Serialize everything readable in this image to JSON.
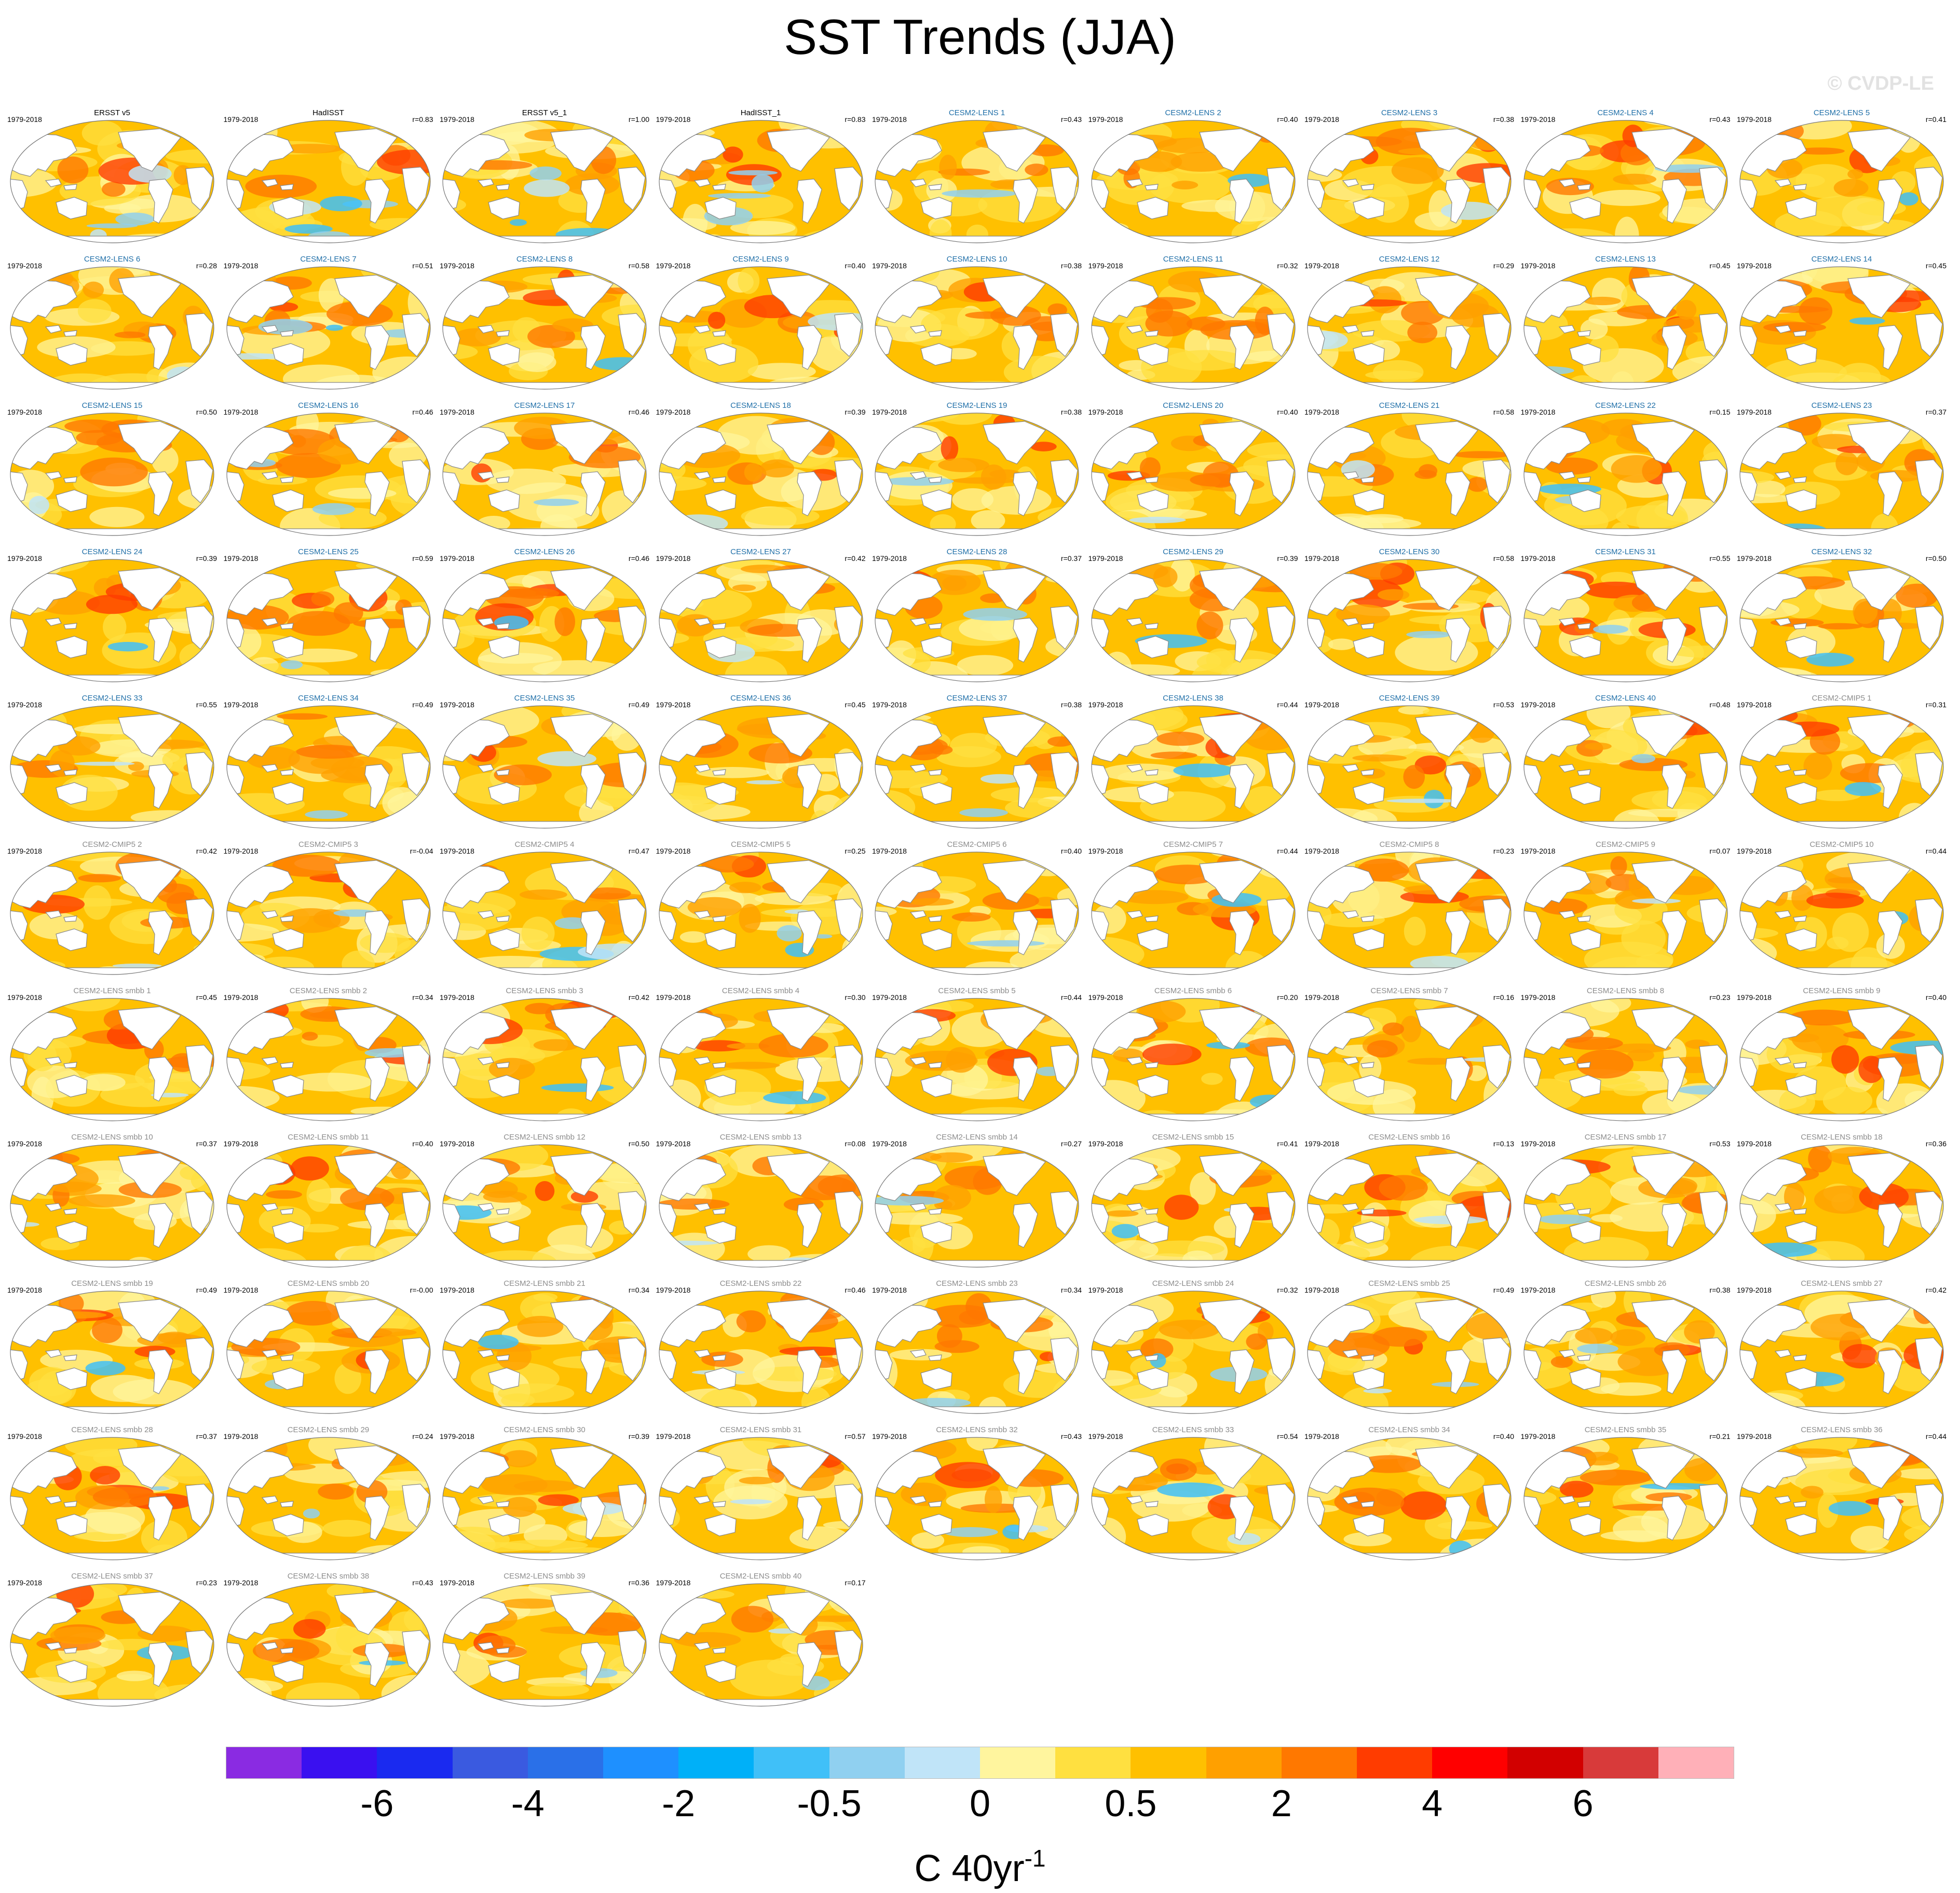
{
  "title": "SST Trends (JJA)",
  "watermark": "© CVDP-LE",
  "period": "1979-2018",
  "panels": [
    {
      "name": "ERSST v5",
      "r": "",
      "group": "obs",
      "warm": 0.55,
      "cool": 0.35
    },
    {
      "name": "HadISST",
      "r": "r=0.83",
      "group": "obs",
      "warm": 0.5,
      "cool": 0.4
    },
    {
      "name": "ERSST v5_1",
      "r": "r=1.00",
      "group": "obs",
      "warm": 0.55,
      "cool": 0.35
    },
    {
      "name": "HadISST_1",
      "r": "r=0.83",
      "group": "obs",
      "warm": 0.5,
      "cool": 0.45
    },
    {
      "name": "CESM2-LENS 1",
      "r": "r=0.43",
      "group": "lens",
      "warm": 0.7,
      "cool": 0.1
    },
    {
      "name": "CESM2-LENS 2",
      "r": "r=0.40",
      "group": "lens",
      "warm": 0.8,
      "cool": 0.1
    },
    {
      "name": "CESM2-LENS 3",
      "r": "r=0.38",
      "group": "lens",
      "warm": 0.8,
      "cool": 0.05
    },
    {
      "name": "CESM2-LENS 4",
      "r": "r=0.43",
      "group": "lens",
      "warm": 0.75,
      "cool": 0.1
    },
    {
      "name": "CESM2-LENS 5",
      "r": "r=0.41",
      "group": "lens",
      "warm": 0.75,
      "cool": 0.05
    },
    {
      "name": "CESM2-LENS 6",
      "r": "r=0.28",
      "group": "lens",
      "warm": 0.8,
      "cool": 0.05
    },
    {
      "name": "CESM2-LENS 7",
      "r": "r=0.51",
      "group": "lens",
      "warm": 0.7,
      "cool": 0.3
    },
    {
      "name": "CESM2-LENS 8",
      "r": "r=0.58",
      "group": "lens",
      "warm": 0.8,
      "cool": 0.05
    },
    {
      "name": "CESM2-LENS 9",
      "r": "r=0.40",
      "group": "lens",
      "warm": 0.75,
      "cool": 0.1
    },
    {
      "name": "CESM2-LENS 10",
      "r": "r=0.38",
      "group": "lens",
      "warm": 0.85,
      "cool": 0.05
    },
    {
      "name": "CESM2-LENS 11",
      "r": "r=0.32",
      "group": "lens",
      "warm": 0.75,
      "cool": 0.05
    },
    {
      "name": "CESM2-LENS 12",
      "r": "r=0.29",
      "group": "lens",
      "warm": 0.75,
      "cool": 0.05
    },
    {
      "name": "CESM2-LENS 13",
      "r": "r=0.45",
      "group": "lens",
      "warm": 0.8,
      "cool": 0.05
    },
    {
      "name": "CESM2-LENS 14",
      "r": "r=0.45",
      "group": "lens",
      "warm": 0.85,
      "cool": 0.05
    },
    {
      "name": "CESM2-LENS 15",
      "r": "r=0.50",
      "group": "lens",
      "warm": 0.75,
      "cool": 0.1
    },
    {
      "name": "CESM2-LENS 16",
      "r": "r=0.46",
      "group": "lens",
      "warm": 0.75,
      "cool": 0.15
    },
    {
      "name": "CESM2-LENS 17",
      "r": "r=0.46",
      "group": "lens",
      "warm": 0.7,
      "cool": 0.1
    },
    {
      "name": "CESM2-LENS 18",
      "r": "r=0.39",
      "group": "lens",
      "warm": 0.8,
      "cool": 0.05
    },
    {
      "name": "CESM2-LENS 19",
      "r": "r=0.38",
      "group": "lens",
      "warm": 0.75,
      "cool": 0.1
    },
    {
      "name": "CESM2-LENS 20",
      "r": "r=0.40",
      "group": "lens",
      "warm": 0.85,
      "cool": 0.05
    },
    {
      "name": "CESM2-LENS 21",
      "r": "r=0.58",
      "group": "lens",
      "warm": 0.8,
      "cool": 0.05
    },
    {
      "name": "CESM2-LENS 22",
      "r": "r=0.15",
      "group": "lens",
      "warm": 0.75,
      "cool": 0.15
    },
    {
      "name": "CESM2-LENS 23",
      "r": "r=0.37",
      "group": "lens",
      "warm": 0.8,
      "cool": 0.1
    },
    {
      "name": "CESM2-LENS 24",
      "r": "r=0.39",
      "group": "lens",
      "warm": 0.7,
      "cool": 0.1
    },
    {
      "name": "CESM2-LENS 25",
      "r": "r=0.59",
      "group": "lens",
      "warm": 0.75,
      "cool": 0.1
    },
    {
      "name": "CESM2-LENS 26",
      "r": "r=0.46",
      "group": "lens",
      "warm": 0.75,
      "cool": 0.05
    },
    {
      "name": "CESM2-LENS 27",
      "r": "r=0.42",
      "group": "lens",
      "warm": 0.75,
      "cool": 0.1
    },
    {
      "name": "CESM2-LENS 28",
      "r": "r=0.37",
      "group": "lens",
      "warm": 0.7,
      "cool": 0.1
    },
    {
      "name": "CESM2-LENS 29",
      "r": "r=0.39",
      "group": "lens",
      "warm": 0.8,
      "cool": 0.05
    },
    {
      "name": "CESM2-LENS 30",
      "r": "r=0.58",
      "group": "lens",
      "warm": 0.7,
      "cool": 0.05
    },
    {
      "name": "CESM2-LENS 31",
      "r": "r=0.55",
      "group": "lens",
      "warm": 0.8,
      "cool": 0.1
    },
    {
      "name": "CESM2-LENS 32",
      "r": "r=0.50",
      "group": "lens",
      "warm": 0.75,
      "cool": 0.05
    },
    {
      "name": "CESM2-LENS 33",
      "r": "r=0.55",
      "group": "lens",
      "warm": 0.75,
      "cool": 0.1
    },
    {
      "name": "CESM2-LENS 34",
      "r": "r=0.49",
      "group": "lens",
      "warm": 0.85,
      "cool": 0.05
    },
    {
      "name": "CESM2-LENS 35",
      "r": "r=0.49",
      "group": "lens",
      "warm": 0.7,
      "cool": 0.05
    },
    {
      "name": "CESM2-LENS 36",
      "r": "r=0.45",
      "group": "lens",
      "warm": 0.8,
      "cool": 0.1
    },
    {
      "name": "CESM2-LENS 37",
      "r": "r=0.38",
      "group": "lens",
      "warm": 0.65,
      "cool": 0.15
    },
    {
      "name": "CESM2-LENS 38",
      "r": "r=0.44",
      "group": "lens",
      "warm": 0.8,
      "cool": 0.1
    },
    {
      "name": "CESM2-LENS 39",
      "r": "r=0.53",
      "group": "lens",
      "warm": 0.7,
      "cool": 0.15
    },
    {
      "name": "CESM2-LENS 40",
      "r": "r=0.48",
      "group": "lens",
      "warm": 0.8,
      "cool": 0.05
    },
    {
      "name": "CESM2-CMIP5 1",
      "r": "r=0.31",
      "group": "other",
      "warm": 0.75,
      "cool": 0.05
    },
    {
      "name": "CESM2-CMIP5 2",
      "r": "r=0.42",
      "group": "other",
      "warm": 0.75,
      "cool": 0.05
    },
    {
      "name": "CESM2-CMIP5 3",
      "r": "r=-0.04",
      "group": "other",
      "warm": 0.7,
      "cool": 0.05
    },
    {
      "name": "CESM2-CMIP5 4",
      "r": "r=0.47",
      "group": "other",
      "warm": 0.65,
      "cool": 0.25
    },
    {
      "name": "CESM2-CMIP5 5",
      "r": "r=0.25",
      "group": "other",
      "warm": 0.6,
      "cool": 0.3
    },
    {
      "name": "CESM2-CMIP5 6",
      "r": "r=0.40",
      "group": "other",
      "warm": 0.7,
      "cool": 0.05
    },
    {
      "name": "CESM2-CMIP5 7",
      "r": "r=0.44",
      "group": "other",
      "warm": 0.75,
      "cool": 0.05
    },
    {
      "name": "CESM2-CMIP5 8",
      "r": "r=0.23",
      "group": "other",
      "warm": 0.7,
      "cool": 0.1
    },
    {
      "name": "CESM2-CMIP5 9",
      "r": "r=0.07",
      "group": "other",
      "warm": 0.7,
      "cool": 0.1
    },
    {
      "name": "CESM2-CMIP5 10",
      "r": "r=0.44",
      "group": "other",
      "warm": 0.75,
      "cool": 0.05
    },
    {
      "name": "CESM2-LENS smbb 1",
      "r": "r=0.45",
      "group": "other",
      "warm": 0.75,
      "cool": 0.05
    },
    {
      "name": "CESM2-LENS smbb 2",
      "r": "r=0.34",
      "group": "other",
      "warm": 0.75,
      "cool": 0.05
    },
    {
      "name": "CESM2-LENS smbb 3",
      "r": "r=0.42",
      "group": "other",
      "warm": 0.7,
      "cool": 0.05
    },
    {
      "name": "CESM2-LENS smbb 4",
      "r": "r=0.30",
      "group": "other",
      "warm": 0.7,
      "cool": 0.1
    },
    {
      "name": "CESM2-LENS smbb 5",
      "r": "r=0.44",
      "group": "other",
      "warm": 0.8,
      "cool": 0.05
    },
    {
      "name": "CESM2-LENS smbb 6",
      "r": "r=0.20",
      "group": "other",
      "warm": 0.7,
      "cool": 0.15
    },
    {
      "name": "CESM2-LENS smbb 7",
      "r": "r=0.16",
      "group": "other",
      "warm": 0.75,
      "cool": 0.1
    },
    {
      "name": "CESM2-LENS smbb 8",
      "r": "r=0.23",
      "group": "other",
      "warm": 0.75,
      "cool": 0.05
    },
    {
      "name": "CESM2-LENS smbb 9",
      "r": "r=0.40",
      "group": "other",
      "warm": 0.75,
      "cool": 0.05
    },
    {
      "name": "CESM2-LENS smbb 10",
      "r": "r=0.37",
      "group": "other",
      "warm": 0.75,
      "cool": 0.05
    },
    {
      "name": "CESM2-LENS smbb 11",
      "r": "r=0.40",
      "group": "other",
      "warm": 0.75,
      "cool": 0.05
    },
    {
      "name": "CESM2-LENS smbb 12",
      "r": "r=0.50",
      "group": "other",
      "warm": 0.75,
      "cool": 0.1
    },
    {
      "name": "CESM2-LENS smbb 13",
      "r": "r=0.08",
      "group": "other",
      "warm": 0.65,
      "cool": 0.15
    },
    {
      "name": "CESM2-LENS smbb 14",
      "r": "r=0.27",
      "group": "other",
      "warm": 0.8,
      "cool": 0.05
    },
    {
      "name": "CESM2-LENS smbb 15",
      "r": "r=0.41",
      "group": "other",
      "warm": 0.65,
      "cool": 0.2
    },
    {
      "name": "CESM2-LENS smbb 16",
      "r": "r=0.13",
      "group": "other",
      "warm": 0.7,
      "cool": 0.1
    },
    {
      "name": "CESM2-LENS smbb 17",
      "r": "r=0.53",
      "group": "other",
      "warm": 0.75,
      "cool": 0.05
    },
    {
      "name": "CESM2-LENS smbb 18",
      "r": "r=0.36",
      "group": "other",
      "warm": 0.75,
      "cool": 0.1
    },
    {
      "name": "CESM2-LENS smbb 19",
      "r": "r=0.49",
      "group": "other",
      "warm": 0.85,
      "cool": 0.05
    },
    {
      "name": "CESM2-LENS smbb 20",
      "r": "r=-0.00",
      "group": "other",
      "warm": 0.75,
      "cool": 0.1
    },
    {
      "name": "CESM2-LENS smbb 21",
      "r": "r=0.34",
      "group": "other",
      "warm": 0.75,
      "cool": 0.05
    },
    {
      "name": "CESM2-LENS smbb 22",
      "r": "r=0.46",
      "group": "other",
      "warm": 0.75,
      "cool": 0.05
    },
    {
      "name": "CESM2-LENS smbb 23",
      "r": "r=0.34",
      "group": "other",
      "warm": 0.8,
      "cool": 0.05
    },
    {
      "name": "CESM2-LENS smbb 24",
      "r": "r=0.32",
      "group": "other",
      "warm": 0.7,
      "cool": 0.15
    },
    {
      "name": "CESM2-LENS smbb 25",
      "r": "r=0.49",
      "group": "other",
      "warm": 0.7,
      "cool": 0.15
    },
    {
      "name": "CESM2-LENS smbb 26",
      "r": "r=0.38",
      "group": "other",
      "warm": 0.75,
      "cool": 0.05
    },
    {
      "name": "CESM2-LENS smbb 27",
      "r": "r=0.42",
      "group": "other",
      "warm": 0.75,
      "cool": 0.05
    },
    {
      "name": "CESM2-LENS smbb 28",
      "r": "r=0.37",
      "group": "other",
      "warm": 0.7,
      "cool": 0.05
    },
    {
      "name": "CESM2-LENS smbb 29",
      "r": "r=0.24",
      "group": "other",
      "warm": 0.75,
      "cool": 0.05
    },
    {
      "name": "CESM2-LENS smbb 30",
      "r": "r=0.39",
      "group": "other",
      "warm": 0.7,
      "cool": 0.05
    },
    {
      "name": "CESM2-LENS smbb 31",
      "r": "r=0.57",
      "group": "other",
      "warm": 0.75,
      "cool": 0.1
    },
    {
      "name": "CESM2-LENS smbb 32",
      "r": "r=0.43",
      "group": "other",
      "warm": 0.65,
      "cool": 0.25
    },
    {
      "name": "CESM2-LENS smbb 33",
      "r": "r=0.54",
      "group": "other",
      "warm": 0.7,
      "cool": 0.15
    },
    {
      "name": "CESM2-LENS smbb 34",
      "r": "r=0.40",
      "group": "other",
      "warm": 0.7,
      "cool": 0.05
    },
    {
      "name": "CESM2-LENS smbb 35",
      "r": "r=0.21",
      "group": "other",
      "warm": 0.7,
      "cool": 0.05
    },
    {
      "name": "CESM2-LENS smbb 36",
      "r": "r=0.44",
      "group": "other",
      "warm": 0.75,
      "cool": 0.1
    },
    {
      "name": "CESM2-LENS smbb 37",
      "r": "r=0.23",
      "group": "other",
      "warm": 0.7,
      "cool": 0.1
    },
    {
      "name": "CESM2-LENS smbb 38",
      "r": "r=0.43",
      "group": "other",
      "warm": 0.7,
      "cool": 0.05
    },
    {
      "name": "CESM2-LENS smbb 39",
      "r": "r=0.36",
      "group": "other",
      "warm": 0.65,
      "cool": 0.1
    },
    {
      "name": "CESM2-LENS smbb 40",
      "r": "r=0.17",
      "group": "other",
      "warm": 0.7,
      "cool": 0.2
    }
  ],
  "colorbar": {
    "colors": [
      "#8a2be2",
      "#3a10f0",
      "#1a2af0",
      "#3a5ae0",
      "#2a70e8",
      "#1e90ff",
      "#00b0f8",
      "#40c0f8",
      "#90d0f0",
      "#c0e4f8",
      "#fff59e",
      "#ffe040",
      "#ffc000",
      "#ffa000",
      "#ff7800",
      "#ff3c00",
      "#ff0000",
      "#d20000",
      "#d83a3a",
      "#ffb0b8"
    ],
    "tick_labels": [
      "-6",
      "-4",
      "-2",
      "-0.5",
      "0",
      "0.5",
      "2",
      "4",
      "6"
    ],
    "tick_boundaries": [
      2,
      4,
      6,
      8,
      10,
      12,
      14,
      16,
      18
    ],
    "unit": "C 40yr",
    "unit_exponent": "-1"
  },
  "legend_colors": {
    "obs_label": "#000000",
    "lens_label": "#1f6fa8",
    "other_label": "#8c8c8c",
    "land": "#ffffff",
    "coast": "#888888"
  }
}
